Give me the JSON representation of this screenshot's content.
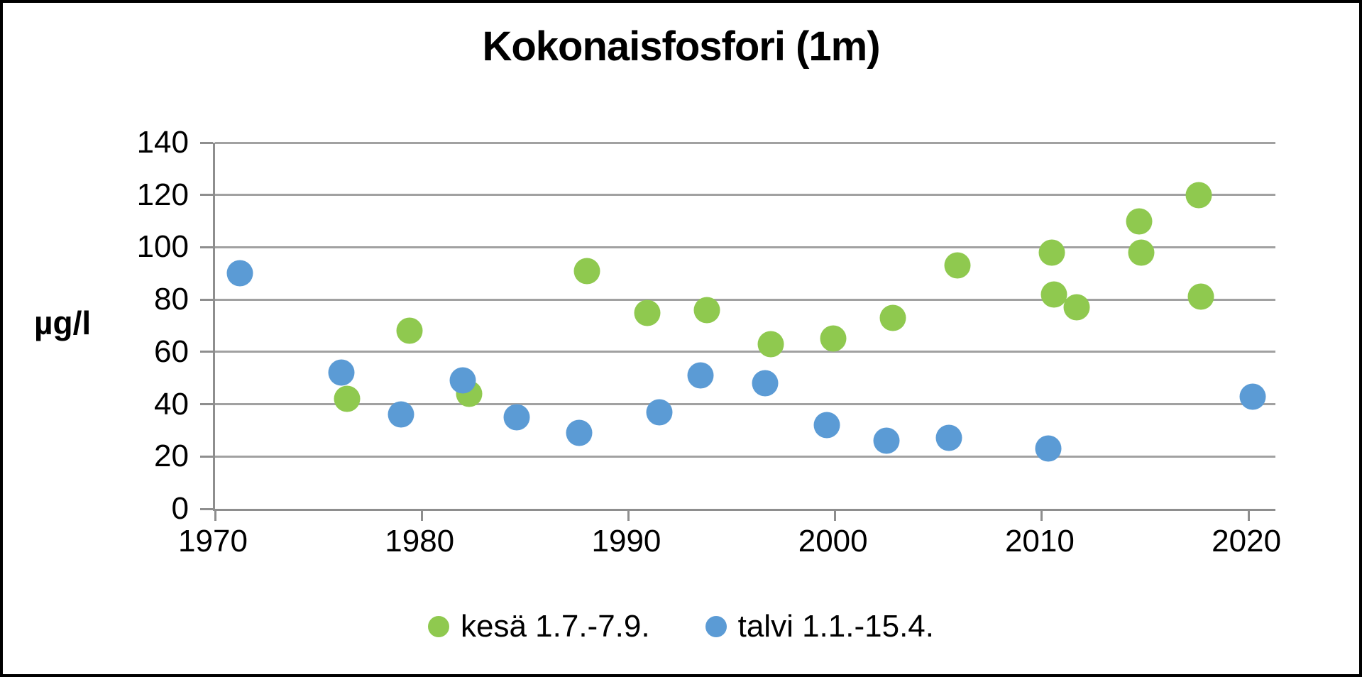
{
  "title": "Kokonaisfosfori (1m)",
  "y_axis": {
    "label": "µg/l",
    "ticks": [
      0,
      20,
      40,
      60,
      80,
      100,
      120,
      140
    ],
    "min": 0,
    "max": 140
  },
  "x_axis": {
    "ticks": [
      1970,
      1980,
      1990,
      2000,
      2010,
      2020
    ],
    "min": 1970,
    "max": 2021.3
  },
  "legend": [
    {
      "label": "kesä 1.7.-7.9.",
      "color": "#8fc94f"
    },
    {
      "label": "talvi 1.1.-15.4.",
      "color": "#5b9bd5"
    }
  ],
  "colors": {
    "summer_green": "#8fc94f",
    "winter_blue": "#5b9bd5",
    "gridline_gray": "#a1a1a1",
    "axis_gray": "#8e8e8e"
  },
  "chart_data": {
    "type": "scatter",
    "title": "Kokonaisfosfori (1m)",
    "xlabel": "",
    "ylabel": "µg/l",
    "xlim": [
      1970,
      2021.3
    ],
    "ylim": [
      0,
      140
    ],
    "x_ticks": [
      1970,
      1980,
      1990,
      2000,
      2010,
      2020
    ],
    "y_ticks": [
      0,
      20,
      40,
      60,
      80,
      100,
      120,
      140
    ],
    "grid": true,
    "legend_position": "bottom",
    "series": [
      {
        "name": "kesä 1.7.-7.9.",
        "color": "#8fc94f",
        "points": [
          [
            1976.4,
            42
          ],
          [
            1979.4,
            68
          ],
          [
            1982.3,
            44
          ],
          [
            1988.0,
            91
          ],
          [
            1990.9,
            75
          ],
          [
            1993.8,
            76
          ],
          [
            1996.9,
            63
          ],
          [
            1999.9,
            65
          ],
          [
            2002.8,
            73
          ],
          [
            2005.9,
            93
          ],
          [
            2010.5,
            98
          ],
          [
            2010.6,
            82
          ],
          [
            2011.7,
            77
          ],
          [
            2014.7,
            110
          ],
          [
            2014.8,
            98
          ],
          [
            2017.6,
            120
          ],
          [
            2017.7,
            81
          ]
        ]
      },
      {
        "name": "talvi 1.1.-15.4.",
        "color": "#5b9bd5",
        "points": [
          [
            1971.2,
            90
          ],
          [
            1976.1,
            52
          ],
          [
            1979.0,
            36
          ],
          [
            1982.0,
            49
          ],
          [
            1984.6,
            35
          ],
          [
            1987.6,
            29
          ],
          [
            1991.5,
            37
          ],
          [
            1993.5,
            51
          ],
          [
            1996.6,
            48
          ],
          [
            1999.6,
            32
          ],
          [
            2002.5,
            26
          ],
          [
            2005.5,
            27
          ],
          [
            2010.3,
            23
          ],
          [
            2020.2,
            43
          ]
        ]
      }
    ]
  }
}
